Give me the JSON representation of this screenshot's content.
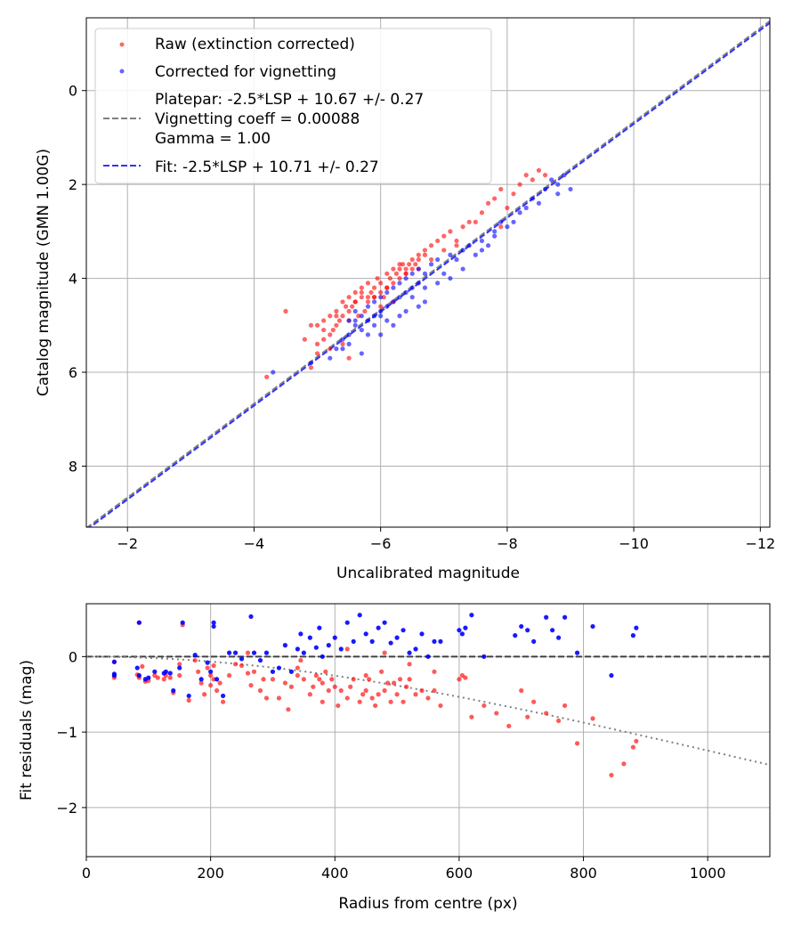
{
  "colors": {
    "raw": "#ff0000",
    "corrected": "#0000ff",
    "platepar_line": "#808080",
    "fit_line": "#3333ff",
    "grid": "#b0b0b0",
    "residual_zero": "#404040",
    "vignetting_curve": "#808080"
  },
  "chart_data": [
    {
      "type": "scatter",
      "title": "",
      "xlabel": "Uncalibrated magnitude",
      "ylabel": "Catalog magnitude (GMN 1.00G)",
      "xlim": [
        -1.35,
        -12.15
      ],
      "ylim": [
        9.3,
        -1.55
      ],
      "xticks": [
        -2,
        -4,
        -6,
        -8,
        -10,
        -12
      ],
      "xtick_labels": [
        "−2",
        "−4",
        "−6",
        "−8",
        "−10",
        "−12"
      ],
      "yticks": [
        0,
        2,
        4,
        6,
        8
      ],
      "ytick_labels": [
        "0",
        "2",
        "4",
        "6",
        "8"
      ],
      "grid": true,
      "legend_position": "top-left",
      "legend": {
        "raw": "Raw (extinction corrected)",
        "corrected": "Corrected for vignetting",
        "platepar_lines": [
          "Platepar: -2.5*LSP + 10.67 +/- 0.27",
          "Vignetting coeff = 0.00088",
          "Gamma = 1.00"
        ],
        "fit": "Fit: -2.5*LSP + 10.71 +/- 0.27"
      },
      "lines": [
        {
          "name": "Platepar",
          "slope": 1,
          "intercept": 10.67
        },
        {
          "name": "Fit",
          "slope": 1,
          "intercept": 10.71
        }
      ],
      "series": [
        {
          "name": "Raw (extinction corrected)",
          "x": [
            -4.5,
            -4.8,
            -4.9,
            -5.0,
            -5.0,
            -5.1,
            -5.1,
            -5.2,
            -5.2,
            -5.25,
            -5.3,
            -5.3,
            -5.35,
            -5.4,
            -5.4,
            -5.45,
            -5.5,
            -5.5,
            -5.5,
            -5.55,
            -5.6,
            -5.6,
            -5.65,
            -5.7,
            -5.7,
            -5.75,
            -5.8,
            -5.8,
            -5.85,
            -5.9,
            -5.9,
            -5.95,
            -6.0,
            -6.0,
            -6.05,
            -6.1,
            -6.1,
            -6.15,
            -6.2,
            -6.2,
            -6.25,
            -6.3,
            -6.3,
            -6.35,
            -6.4,
            -6.4,
            -6.45,
            -6.5,
            -6.5,
            -6.55,
            -6.6,
            -6.6,
            -6.7,
            -6.7,
            -6.8,
            -6.8,
            -6.9,
            -7.0,
            -7.0,
            -7.1,
            -7.2,
            -7.3,
            -7.4,
            -7.5,
            -7.6,
            -7.7,
            -7.8,
            -7.9,
            -8.0,
            -8.1,
            -8.2,
            -8.3,
            -8.4,
            -8.5,
            -8.6,
            -5.3,
            -5.6,
            -5.8,
            -6.0,
            -6.2,
            -5.0,
            -5.2,
            -4.9,
            -5.4,
            -5.5,
            -6.3,
            -6.1,
            -5.9,
            -6.4,
            -5.7,
            -4.2,
            -5.1,
            -6.6,
            -7.2,
            -7.9
          ],
          "y": [
            4.7,
            5.3,
            5.0,
            5.0,
            5.4,
            5.3,
            4.9,
            4.8,
            5.2,
            5.1,
            4.7,
            5.0,
            4.9,
            4.5,
            4.8,
            4.6,
            4.9,
            4.4,
            4.7,
            4.6,
            4.3,
            4.5,
            4.8,
            4.2,
            4.4,
            4.7,
            4.1,
            4.5,
            4.3,
            4.2,
            4.4,
            4.0,
            4.1,
            4.3,
            4.4,
            3.9,
            4.2,
            4.0,
            3.8,
            4.1,
            3.9,
            3.8,
            4.0,
            3.7,
            3.8,
            3.9,
            3.7,
            3.6,
            3.8,
            3.7,
            3.6,
            3.5,
            3.5,
            3.4,
            3.3,
            3.6,
            3.2,
            3.1,
            3.4,
            3.0,
            3.2,
            2.9,
            2.8,
            2.8,
            2.6,
            2.4,
            2.3,
            2.1,
            2.5,
            2.2,
            2.0,
            1.8,
            1.9,
            1.7,
            1.8,
            4.8,
            4.5,
            4.4,
            4.6,
            4.5,
            5.6,
            5.5,
            5.9,
            5.4,
            5.7,
            3.7,
            4.2,
            4.4,
            3.9,
            4.3,
            6.1,
            5.1,
            3.8,
            3.3,
            2.9
          ]
        },
        {
          "name": "Corrected for vignetting",
          "x": [
            -4.3,
            -4.9,
            -5.2,
            -5.3,
            -5.4,
            -5.5,
            -5.5,
            -5.6,
            -5.6,
            -5.7,
            -5.7,
            -5.8,
            -5.8,
            -5.9,
            -5.9,
            -6.0,
            -6.0,
            -6.1,
            -6.1,
            -6.2,
            -6.2,
            -6.3,
            -6.3,
            -6.4,
            -6.4,
            -6.5,
            -6.5,
            -6.6,
            -6.6,
            -6.7,
            -6.7,
            -6.8,
            -6.9,
            -7.0,
            -7.1,
            -7.2,
            -7.3,
            -7.4,
            -7.5,
            -7.6,
            -7.7,
            -7.8,
            -7.9,
            -8.0,
            -8.2,
            -8.4,
            -8.5,
            -8.6,
            -8.7,
            -8.8,
            -8.9,
            -9.0,
            -5.6,
            -5.8,
            -6.0,
            -6.2,
            -6.4,
            -6.6,
            -5.5,
            -5.7,
            -5.9,
            -6.1,
            -6.3,
            -6.5,
            -6.7,
            -7.1,
            -7.3,
            -7.6,
            -8.1,
            -8.3,
            -8.8,
            -5.4,
            -6.0,
            -6.9,
            -7.8
          ],
          "y": [
            6.0,
            5.8,
            5.7,
            5.5,
            5.3,
            5.2,
            4.9,
            5.0,
            4.7,
            4.8,
            5.1,
            4.6,
            4.9,
            4.5,
            4.8,
            4.4,
            4.7,
            4.3,
            4.6,
            4.2,
            4.5,
            4.1,
            4.4,
            4.0,
            4.3,
            4.2,
            3.9,
            4.1,
            3.8,
            3.9,
            4.2,
            3.7,
            3.6,
            3.9,
            3.5,
            3.6,
            3.4,
            3.3,
            3.5,
            3.4,
            3.3,
            3.1,
            2.8,
            2.9,
            2.6,
            2.3,
            2.4,
            2.1,
            1.9,
            2.2,
            1.8,
            2.1,
            4.9,
            5.2,
            4.8,
            5.0,
            4.7,
            4.6,
            5.4,
            5.6,
            5.0,
            4.9,
            4.8,
            4.4,
            4.5,
            4.0,
            3.8,
            3.2,
            2.8,
            2.5,
            2.0,
            5.5,
            5.2,
            4.1,
            3.0
          ]
        }
      ]
    },
    {
      "type": "scatter",
      "title": "",
      "xlabel": "Radius from centre (px)",
      "ylabel": "Fit residuals (mag)",
      "xlim": [
        0,
        1100
      ],
      "ylim": [
        -2.65,
        0.7
      ],
      "xticks": [
        0,
        200,
        400,
        600,
        800,
        1000
      ],
      "xtick_labels": [
        "0",
        "200",
        "400",
        "600",
        "800",
        "1000"
      ],
      "yticks": [
        0,
        -1,
        -2
      ],
      "ytick_labels": [
        "0",
        "−1",
        "−2"
      ],
      "grid": true,
      "vignetting_coeff": 0.00088,
      "series": [
        {
          "name": "Raw (extinction corrected)",
          "x": [
            45,
            45,
            45,
            82,
            85,
            85,
            90,
            95,
            100,
            110,
            115,
            125,
            128,
            135,
            140,
            150,
            155,
            165,
            175,
            180,
            185,
            190,
            195,
            200,
            200,
            205,
            205,
            210,
            215,
            220,
            230,
            240,
            250,
            260,
            265,
            270,
            280,
            285,
            290,
            300,
            310,
            320,
            325,
            330,
            340,
            345,
            350,
            360,
            365,
            370,
            375,
            380,
            385,
            390,
            395,
            400,
            405,
            410,
            420,
            425,
            430,
            440,
            445,
            450,
            455,
            460,
            465,
            470,
            475,
            480,
            485,
            490,
            495,
            500,
            505,
            510,
            515,
            520,
            530,
            540,
            550,
            560,
            570,
            600,
            605,
            610,
            620,
            640,
            660,
            680,
            700,
            710,
            720,
            740,
            760,
            770,
            790,
            815,
            845,
            865,
            880,
            885,
            340,
            420,
            480,
            520,
            560,
            150,
            260,
            380,
            450
          ],
          "y": [
            -0.07,
            -0.25,
            -0.28,
            -0.24,
            -0.28,
            0.45,
            -0.13,
            -0.33,
            -0.32,
            -0.25,
            -0.28,
            -0.3,
            -0.25,
            -0.28,
            -0.48,
            -0.25,
            0.42,
            -0.58,
            -0.05,
            -0.2,
            -0.35,
            -0.5,
            -0.15,
            -0.25,
            -0.38,
            -0.12,
            -0.3,
            -0.45,
            -0.35,
            -0.6,
            -0.25,
            -0.1,
            -0.12,
            -0.22,
            -0.38,
            -0.2,
            -0.45,
            -0.3,
            -0.55,
            -0.3,
            -0.55,
            -0.35,
            -0.7,
            -0.4,
            -0.25,
            -0.05,
            -0.3,
            -0.5,
            -0.4,
            -0.25,
            -0.3,
            -0.35,
            -0.2,
            -0.45,
            -0.3,
            -0.4,
            -0.65,
            -0.45,
            -0.55,
            -0.4,
            -0.3,
            -0.6,
            -0.5,
            -0.45,
            -0.3,
            -0.55,
            -0.65,
            -0.5,
            -0.2,
            -0.45,
            -0.35,
            -0.6,
            -0.35,
            -0.5,
            -0.3,
            -0.6,
            -0.4,
            -0.3,
            -0.5,
            -0.45,
            -0.55,
            -0.45,
            -0.65,
            -0.3,
            -0.25,
            -0.28,
            -0.8,
            -0.65,
            -0.75,
            -0.92,
            -0.45,
            -0.8,
            -0.6,
            -0.75,
            -0.85,
            -0.65,
            -1.15,
            -0.82,
            -1.57,
            -1.42,
            -1.2,
            -1.12,
            -0.15,
            0.1,
            0.05,
            -0.1,
            -0.2,
            -0.1,
            0.05,
            -0.6,
            -0.25
          ]
        },
        {
          "name": "Corrected for vignetting",
          "x": [
            45,
            45,
            45,
            82,
            85,
            85,
            95,
            100,
            110,
            125,
            128,
            135,
            140,
            150,
            155,
            165,
            175,
            185,
            195,
            200,
            205,
            205,
            210,
            220,
            230,
            240,
            250,
            265,
            270,
            280,
            290,
            300,
            310,
            320,
            330,
            340,
            345,
            350,
            360,
            370,
            375,
            380,
            390,
            400,
            410,
            420,
            430,
            440,
            450,
            460,
            470,
            480,
            490,
            500,
            510,
            520,
            530,
            540,
            550,
            560,
            570,
            600,
            605,
            610,
            620,
            640,
            690,
            700,
            710,
            720,
            740,
            750,
            760,
            770,
            790,
            815,
            845,
            880,
            885
          ],
          "y": [
            -0.07,
            -0.23,
            -0.25,
            -0.15,
            -0.25,
            0.45,
            -0.3,
            -0.28,
            -0.2,
            -0.22,
            -0.2,
            -0.22,
            -0.45,
            -0.15,
            0.45,
            -0.52,
            0.02,
            -0.3,
            -0.08,
            -0.2,
            0.45,
            0.4,
            -0.3,
            -0.52,
            0.05,
            0.05,
            -0.03,
            0.53,
            0.05,
            -0.05,
            0.05,
            -0.2,
            -0.15,
            0.15,
            -0.2,
            0.1,
            0.3,
            0.05,
            0.25,
            0.12,
            0.38,
            0.0,
            0.15,
            0.25,
            0.1,
            0.45,
            0.2,
            0.55,
            0.3,
            0.2,
            0.38,
            0.45,
            0.18,
            0.25,
            0.35,
            0.05,
            0.1,
            0.3,
            0.0,
            0.2,
            0.2,
            0.35,
            0.3,
            0.38,
            0.55,
            0.0,
            0.28,
            0.4,
            0.35,
            0.2,
            0.52,
            0.35,
            0.25,
            0.52,
            0.05,
            0.4,
            -0.25,
            0.28,
            0.38
          ]
        }
      ]
    }
  ]
}
